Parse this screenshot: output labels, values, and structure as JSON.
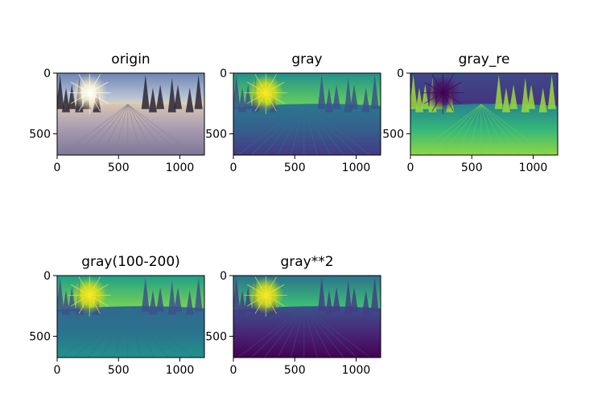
{
  "chart_data": [
    {
      "type": "image",
      "title": "origin",
      "colormap": "rgb",
      "xticks": [
        0,
        500,
        1000
      ],
      "yticks": [
        0,
        500
      ],
      "xlim": [
        0,
        1200
      ],
      "ylim": [
        675,
        0
      ]
    },
    {
      "type": "image",
      "title": "gray",
      "colormap": "viridis",
      "xticks": [
        0,
        500,
        1000
      ],
      "yticks": [
        0,
        500
      ],
      "xlim": [
        0,
        1200
      ],
      "ylim": [
        675,
        0
      ]
    },
    {
      "type": "image",
      "title": "gray_re",
      "colormap": "viridis",
      "xticks": [
        0,
        500,
        1000
      ],
      "yticks": [
        0,
        500
      ],
      "xlim": [
        0,
        1200
      ],
      "ylim": [
        675,
        0
      ]
    },
    {
      "type": "image",
      "title": "gray(100-200)",
      "colormap": "viridis",
      "xticks": [
        0,
        500,
        1000
      ],
      "yticks": [
        0,
        500
      ],
      "xlim": [
        0,
        1200
      ],
      "ylim": [
        675,
        0
      ]
    },
    {
      "type": "image",
      "title": "gray**2",
      "colormap": "viridis",
      "xticks": [
        0,
        500,
        1000
      ],
      "yticks": [
        0,
        500
      ],
      "xlim": [
        0,
        1200
      ],
      "ylim": [
        675,
        0
      ]
    }
  ]
}
